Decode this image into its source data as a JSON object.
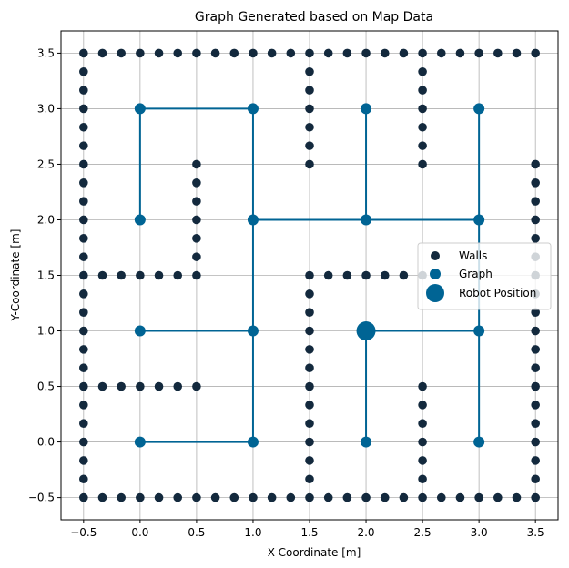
{
  "chart_data": {
    "type": "scatter",
    "title": "Graph Generated based on Map Data",
    "xlabel": "X-Coordinate [m]",
    "ylabel": "Y-Coordinate [m]",
    "xlim": [
      -0.7,
      3.7
    ],
    "ylim": [
      -0.7,
      3.7
    ],
    "grid": true,
    "legend_position": "right",
    "x_ticks": [
      -0.5,
      0.0,
      0.5,
      1.0,
      1.5,
      2.0,
      2.5,
      3.0,
      3.5
    ],
    "y_ticks": [
      -0.5,
      0.0,
      0.5,
      1.0,
      1.5,
      2.0,
      2.5,
      3.0,
      3.5
    ],
    "x_tick_labels": [
      "−0.5",
      "0.0",
      "0.5",
      "1.0",
      "1.5",
      "2.0",
      "2.5",
      "3.0",
      "3.5"
    ],
    "y_tick_labels": [
      "−0.5",
      "0.0",
      "0.5",
      "1.0",
      "1.5",
      "2.0",
      "2.5",
      "3.0",
      "3.5"
    ],
    "colors": {
      "walls": "#13293d",
      "graph": "#006494",
      "robot": "#006494"
    },
    "series": [
      {
        "name": "Walls",
        "kind": "wall_segments",
        "step": 0.1667,
        "segments": [
          {
            "from": [
              -0.5,
              3.5
            ],
            "to": [
              3.5,
              3.5
            ]
          },
          {
            "from": [
              -0.5,
              -0.5
            ],
            "to": [
              3.5,
              -0.5
            ]
          },
          {
            "from": [
              -0.5,
              -0.5
            ],
            "to": [
              -0.5,
              3.5
            ]
          },
          {
            "from": [
              3.5,
              -0.5
            ],
            "to": [
              3.5,
              2.5
            ]
          },
          {
            "from": [
              -0.5,
              1.5
            ],
            "to": [
              0.5,
              1.5
            ]
          },
          {
            "from": [
              0.5,
              1.5
            ],
            "to": [
              0.5,
              2.5
            ]
          },
          {
            "from": [
              -0.5,
              0.5
            ],
            "to": [
              0.5,
              0.5
            ]
          },
          {
            "from": [
              1.5,
              2.5
            ],
            "to": [
              1.5,
              3.5
            ]
          },
          {
            "from": [
              2.5,
              2.5
            ],
            "to": [
              2.5,
              3.5
            ]
          },
          {
            "from": [
              1.5,
              1.5
            ],
            "to": [
              2.5,
              1.5
            ]
          },
          {
            "from": [
              1.5,
              -0.5
            ],
            "to": [
              1.5,
              1.5
            ]
          },
          {
            "from": [
              2.5,
              -0.5
            ],
            "to": [
              2.5,
              0.5
            ]
          }
        ]
      },
      {
        "name": "Graph",
        "nodes": [
          [
            0,
            3
          ],
          [
            1,
            3
          ],
          [
            2,
            3
          ],
          [
            3,
            3
          ],
          [
            0,
            2
          ],
          [
            1,
            2
          ],
          [
            2,
            2
          ],
          [
            3,
            2
          ],
          [
            0,
            1
          ],
          [
            1,
            1
          ],
          [
            2,
            1
          ],
          [
            3,
            1
          ],
          [
            0,
            0
          ],
          [
            1,
            0
          ],
          [
            2,
            0
          ],
          [
            3,
            0
          ]
        ],
        "edges": [
          [
            [
              0,
              3
            ],
            [
              1,
              3
            ]
          ],
          [
            [
              0,
              3
            ],
            [
              0,
              2
            ]
          ],
          [
            [
              1,
              3
            ],
            [
              1,
              2
            ]
          ],
          [
            [
              2,
              3
            ],
            [
              2,
              2
            ]
          ],
          [
            [
              3,
              3
            ],
            [
              3,
              2
            ]
          ],
          [
            [
              1,
              2
            ],
            [
              2,
              2
            ]
          ],
          [
            [
              2,
              2
            ],
            [
              3,
              2
            ]
          ],
          [
            [
              1,
              2
            ],
            [
              1,
              1
            ]
          ],
          [
            [
              1,
              1
            ],
            [
              1,
              0
            ]
          ],
          [
            [
              0,
              1
            ],
            [
              1,
              1
            ]
          ],
          [
            [
              0,
              0
            ],
            [
              1,
              0
            ]
          ],
          [
            [
              2,
              1
            ],
            [
              3,
              1
            ]
          ],
          [
            [
              3,
              2
            ],
            [
              3,
              1
            ]
          ],
          [
            [
              3,
              1
            ],
            [
              3,
              0
            ]
          ],
          [
            [
              2,
              1
            ],
            [
              2,
              0
            ]
          ]
        ]
      },
      {
        "name": "Robot Position",
        "points": [
          [
            2.0,
            1.0
          ]
        ]
      }
    ]
  }
}
